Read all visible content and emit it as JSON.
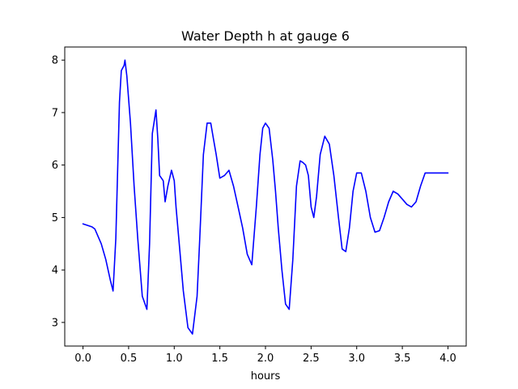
{
  "chart_data": {
    "type": "line",
    "title": "Water Depth h at gauge 6",
    "xlabel": "hours",
    "ylabel": "",
    "xlim": [
      -0.2,
      4.2
    ],
    "ylim": [
      2.55,
      8.25
    ],
    "xticks": [
      0.0,
      0.5,
      1.0,
      1.5,
      2.0,
      2.5,
      3.0,
      3.5,
      4.0
    ],
    "xtick_labels": [
      "0.0",
      "0.5",
      "1.0",
      "1.5",
      "2.0",
      "2.5",
      "3.0",
      "3.5",
      "4.0"
    ],
    "yticks": [
      3,
      4,
      5,
      6,
      7,
      8
    ],
    "ytick_labels": [
      "3",
      "4",
      "5",
      "6",
      "7",
      "8"
    ],
    "grid": false,
    "series": [
      {
        "color": "#0000ff",
        "x": [
          0.0,
          0.05,
          0.1,
          0.13,
          0.2,
          0.25,
          0.3,
          0.33,
          0.36,
          0.4,
          0.42,
          0.45,
          0.46,
          0.48,
          0.52,
          0.56,
          0.6,
          0.65,
          0.7,
          0.73,
          0.76,
          0.8,
          0.82,
          0.84,
          0.86,
          0.88,
          0.9,
          0.93,
          0.97,
          1.0,
          1.02,
          1.05,
          1.1,
          1.15,
          1.2,
          1.25,
          1.28,
          1.32,
          1.36,
          1.4,
          1.43,
          1.46,
          1.5,
          1.55,
          1.6,
          1.65,
          1.7,
          1.75,
          1.8,
          1.85,
          1.9,
          1.94,
          1.97,
          2.0,
          2.04,
          2.08,
          2.11,
          2.14,
          2.18,
          2.22,
          2.26,
          2.3,
          2.34,
          2.38,
          2.41,
          2.44,
          2.47,
          2.5,
          2.53,
          2.56,
          2.6,
          2.65,
          2.7,
          2.75,
          2.8,
          2.84,
          2.88,
          2.92,
          2.96,
          3.0,
          3.05,
          3.1,
          3.15,
          3.2,
          3.25,
          3.3,
          3.35,
          3.4,
          3.45,
          3.5,
          3.55,
          3.6,
          3.65,
          3.7,
          3.75,
          3.8,
          3.85,
          3.9,
          3.95,
          4.0
        ],
        "values": [
          4.88,
          4.85,
          4.82,
          4.78,
          4.5,
          4.2,
          3.8,
          3.6,
          4.6,
          7.2,
          7.8,
          7.9,
          8.0,
          7.7,
          6.8,
          5.6,
          4.6,
          3.5,
          3.25,
          4.5,
          6.6,
          7.05,
          6.5,
          5.8,
          5.75,
          5.7,
          5.3,
          5.6,
          5.9,
          5.7,
          5.2,
          4.6,
          3.6,
          2.9,
          2.78,
          3.5,
          4.6,
          6.2,
          6.8,
          6.8,
          6.5,
          6.2,
          5.75,
          5.8,
          5.9,
          5.6,
          5.2,
          4.8,
          4.3,
          4.1,
          5.2,
          6.2,
          6.7,
          6.8,
          6.7,
          6.1,
          5.5,
          4.8,
          4.0,
          3.35,
          3.25,
          4.2,
          5.6,
          6.08,
          6.05,
          6.0,
          5.8,
          5.2,
          5.0,
          5.4,
          6.2,
          6.55,
          6.4,
          5.8,
          5.0,
          4.4,
          4.35,
          4.8,
          5.5,
          5.85,
          5.85,
          5.5,
          5.0,
          4.72,
          4.75,
          5.0,
          5.3,
          5.5,
          5.45,
          5.35,
          5.25,
          5.2,
          5.3,
          5.6,
          5.85,
          5.85,
          5.85,
          5.85,
          5.85,
          5.85
        ]
      }
    ]
  }
}
